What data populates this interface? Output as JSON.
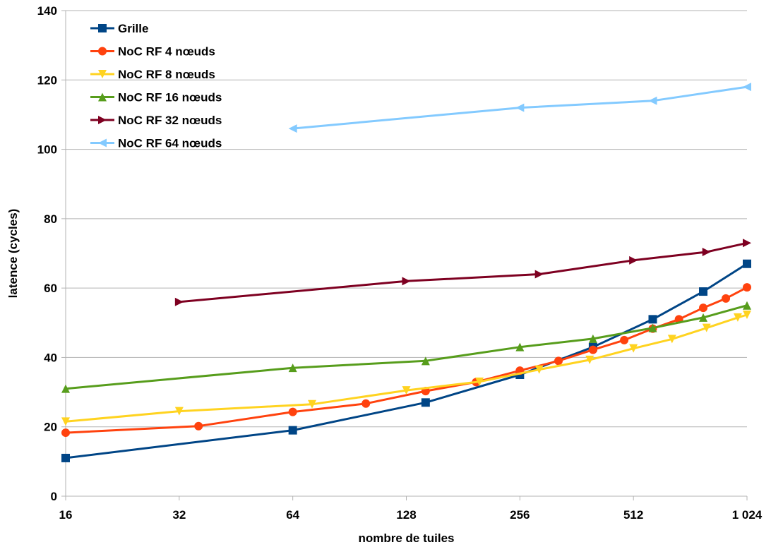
{
  "chart_data": {
    "type": "line",
    "title": "",
    "xlabel": "nombre de tuiles",
    "ylabel": "latence (cycles)",
    "x_scale": "log2",
    "xlim": [
      16,
      1024
    ],
    "ylim": [
      0,
      140
    ],
    "x_ticks": [
      16,
      32,
      64,
      128,
      256,
      512,
      1024
    ],
    "x_tick_labels": [
      "16",
      "32",
      "64",
      "128",
      "256",
      "512",
      "1 024"
    ],
    "y_ticks": [
      0,
      20,
      40,
      60,
      80,
      100,
      120,
      140
    ],
    "y_tick_labels": [
      "0",
      "20",
      "40",
      "60",
      "80",
      "100",
      "120",
      "140"
    ],
    "grid": "horizontal",
    "legend_position": "top-left",
    "series": [
      {
        "name": "Grille",
        "color": "#004586",
        "marker": "square",
        "points": [
          [
            16,
            11
          ],
          [
            64,
            19
          ],
          [
            144,
            27
          ],
          [
            256,
            35
          ],
          [
            400,
            43
          ],
          [
            576,
            51
          ],
          [
            784,
            59
          ],
          [
            1024,
            67
          ]
        ]
      },
      {
        "name": "NoC RF 4 nœuds",
        "color": "#ff420e",
        "marker": "circle",
        "points": [
          [
            16,
            18.3
          ],
          [
            36,
            20.2
          ],
          [
            64,
            24.3
          ],
          [
            100,
            26.7
          ],
          [
            144,
            30.3
          ],
          [
            196,
            32.9
          ],
          [
            256,
            36.2
          ],
          [
            324,
            39
          ],
          [
            400,
            42.2
          ],
          [
            484,
            45
          ],
          [
            576,
            48.3
          ],
          [
            676,
            51
          ],
          [
            784,
            54.3
          ],
          [
            900,
            57
          ],
          [
            1024,
            60.2
          ]
        ]
      },
      {
        "name": "NoC RF 8 nœuds",
        "color": "#ffd320",
        "marker": "triangle-down",
        "points": [
          [
            16,
            21.5
          ],
          [
            32,
            24.5
          ],
          [
            72,
            26.5
          ],
          [
            128,
            30.5
          ],
          [
            200,
            33
          ],
          [
            288,
            36.5
          ],
          [
            392,
            39.3
          ],
          [
            512,
            42.6
          ],
          [
            648,
            45.3
          ],
          [
            800,
            48.5
          ],
          [
            968,
            51.5
          ],
          [
            1024,
            52.3
          ]
        ]
      },
      {
        "name": "NoC RF 16 nœuds",
        "color": "#579d1c",
        "marker": "triangle-up",
        "points": [
          [
            16,
            31
          ],
          [
            64,
            37
          ],
          [
            144,
            39
          ],
          [
            256,
            43
          ],
          [
            400,
            45.4
          ],
          [
            576,
            48.5
          ],
          [
            784,
            51.5
          ],
          [
            1024,
            55
          ]
        ]
      },
      {
        "name": "NoC RF 32 nœuds",
        "color": "#7e0021",
        "marker": "triangle-right",
        "points": [
          [
            32,
            56
          ],
          [
            128,
            62
          ],
          [
            288,
            64
          ],
          [
            512,
            68
          ],
          [
            800,
            70.4
          ],
          [
            1024,
            73
          ]
        ]
      },
      {
        "name": "NoC RF 64 nœuds",
        "color": "#83caff",
        "marker": "triangle-left",
        "points": [
          [
            64,
            106
          ],
          [
            256,
            112
          ],
          [
            576,
            114
          ],
          [
            1024,
            118
          ]
        ]
      }
    ]
  }
}
